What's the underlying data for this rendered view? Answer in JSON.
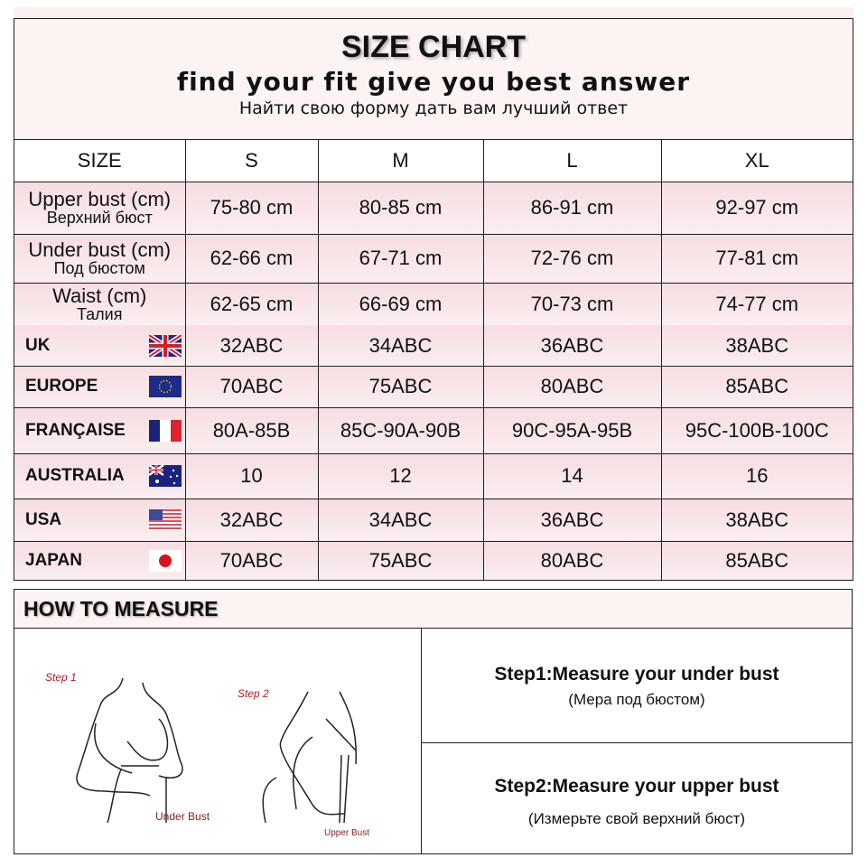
{
  "header": {
    "title": "SIZE CHART",
    "subtitle": "find your fit give you best answer",
    "subtitle_ru": "Найти свою форму дать вам лучший ответ"
  },
  "table": {
    "size_label": "SIZE",
    "sizes": [
      "S",
      "M",
      "L",
      "XL"
    ],
    "measure_rows": [
      {
        "label": "Upper bust (cm)",
        "label_ru": "Верхний бюст",
        "values": [
          "75-80 cm",
          "80-85 cm",
          "86-91 cm",
          "92-97 cm"
        ]
      },
      {
        "label": "Under bust (cm)",
        "label_ru": "Под бюстом",
        "values": [
          "62-66 cm",
          "67-71 cm",
          "72-76 cm",
          "77-81 cm"
        ]
      },
      {
        "label": "Waist (cm)",
        "label_ru": "Талия",
        "values": [
          "62-65 cm",
          "66-69 cm",
          "70-73 cm",
          "74-77 cm"
        ]
      }
    ],
    "country_rows": [
      {
        "label": "UK",
        "flag": "uk-flag",
        "values": [
          "32ABC",
          "34ABC",
          "36ABC",
          "38ABC"
        ]
      },
      {
        "label": "EUROPE",
        "flag": "eu-flag",
        "values": [
          "70ABC",
          "75ABC",
          "80ABC",
          "85ABC"
        ]
      },
      {
        "label": "FRANÇAISE",
        "flag": "france-flag",
        "values": [
          "80A-85B",
          "85C-90A-90B",
          "90C-95A-95B",
          "95C-100B-100C"
        ]
      },
      {
        "label": "AUSTRALIA",
        "flag": "australia-flag",
        "values": [
          "10",
          "12",
          "14",
          "16"
        ]
      },
      {
        "label": "USA",
        "flag": "usa-flag",
        "values": [
          "32ABC",
          "34ABC",
          "36ABC",
          "38ABC"
        ]
      },
      {
        "label": "JAPAN",
        "flag": "japan-flag",
        "values": [
          "70ABC",
          "75ABC",
          "80ABC",
          "85ABC"
        ]
      }
    ]
  },
  "measure": {
    "title": "HOW TO MEASURE",
    "illustration": {
      "step1": "Step 1",
      "step1_caption": "Under Bust",
      "step2": "Step 2",
      "step2_caption": "Upper Bust",
      "label_color": "#b01e23"
    },
    "steps": [
      {
        "title": "Step1:Measure your under bust",
        "ru": "(Мера под бюстом)"
      },
      {
        "title": "Step2:Measure your upper bust",
        "ru": "(Измерьте свой верхний бюст)"
      }
    ]
  }
}
